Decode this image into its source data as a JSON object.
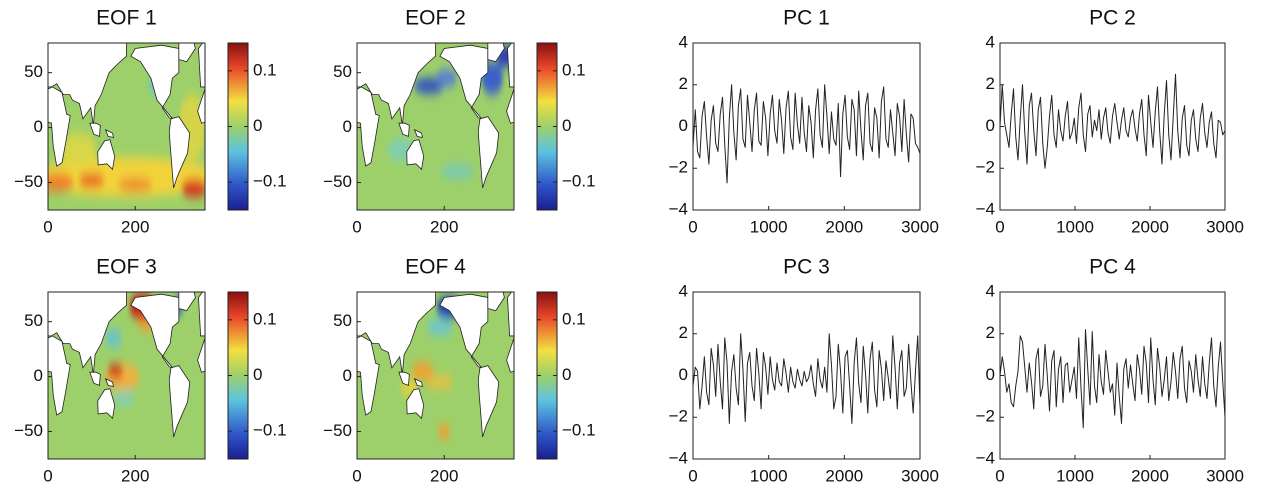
{
  "chart_data": [
    {
      "type": "map",
      "title": "EOF 1",
      "xlim": [
        0,
        360
      ],
      "ylim": [
        -75,
        77
      ],
      "xticks": [
        0,
        200
      ],
      "yticks": [
        50,
        0,
        {
          "value": -50,
          "label": "−50"
        }
      ],
      "colorbar": {
        "clim": [
          -0.15,
          0.15
        ],
        "ticks": [
          0.1,
          0,
          {
            "value": -0.1,
            "label": "−0.1"
          }
        ]
      }
    },
    {
      "type": "map",
      "title": "EOF 2",
      "xlim": [
        0,
        360
      ],
      "ylim": [
        -75,
        77
      ],
      "xticks": [
        0,
        200
      ],
      "yticks": [
        50,
        0,
        {
          "value": -50,
          "label": "−50"
        }
      ],
      "colorbar": {
        "clim": [
          -0.15,
          0.15
        ],
        "ticks": [
          0.1,
          0,
          {
            "value": -0.1,
            "label": "−0.1"
          }
        ]
      }
    },
    {
      "type": "line",
      "title": "PC 1",
      "color": "#222222",
      "xlim": [
        0,
        3000
      ],
      "ylim": [
        -4,
        4
      ],
      "xticks": [
        0,
        1000,
        2000,
        3000
      ],
      "yticks": [
        {
          "value": -4,
          "label": "−4"
        },
        {
          "value": -2,
          "label": "−2"
        },
        0,
        2,
        4
      ],
      "x": [
        0,
        30,
        60,
        90,
        120,
        150,
        180,
        210,
        240,
        270,
        300,
        330,
        360,
        390,
        420,
        450,
        480,
        510,
        540,
        570,
        600,
        630,
        660,
        690,
        720,
        750,
        780,
        810,
        840,
        870,
        900,
        930,
        960,
        990,
        1020,
        1050,
        1080,
        1110,
        1140,
        1170,
        1200,
        1230,
        1260,
        1290,
        1320,
        1350,
        1380,
        1410,
        1440,
        1470,
        1500,
        1530,
        1560,
        1590,
        1620,
        1650,
        1680,
        1710,
        1740,
        1770,
        1800,
        1830,
        1860,
        1890,
        1920,
        1950,
        1980,
        2010,
        2040,
        2070,
        2100,
        2130,
        2160,
        2190,
        2220,
        2250,
        2280,
        2310,
        2340,
        2370,
        2400,
        2430,
        2460,
        2490,
        2520,
        2550,
        2580,
        2610,
        2640,
        2670,
        2700,
        2730,
        2760,
        2790,
        2820,
        2850,
        2880,
        2910,
        2940,
        2970,
        3000
      ],
      "values": [
        -1.0,
        0.8,
        -1.2,
        -1.5,
        0.5,
        1.2,
        -0.5,
        -1.8,
        0.3,
        1.0,
        -0.8,
        -1.2,
        0.6,
        1.4,
        -0.9,
        -2.7,
        0.4,
        2.0,
        -0.3,
        -1.6,
        1.0,
        1.8,
        -0.6,
        -1.0,
        1.5,
        0.2,
        -1.2,
        0.8,
        1.6,
        -0.7,
        -0.9,
        1.2,
        0.4,
        -1.4,
        0.6,
        1.5,
        -0.2,
        -0.8,
        1.3,
        0.3,
        -1.3,
        0.9,
        1.7,
        -0.5,
        -1.1,
        1.6,
        0.1,
        -0.8,
        1.4,
        -0.3,
        -1.2,
        1.0,
        0.2,
        -1.5,
        0.8,
        1.8,
        -0.4,
        -1.0,
        2.0,
        0.5,
        -1.3,
        0.7,
        -0.6,
        -0.9,
        1.1,
        -2.4,
        0.6,
        1.5,
        -0.5,
        -1.1,
        1.3,
        0.8,
        -1.4,
        1.7,
        -0.2,
        -1.6,
        1.0,
        1.6,
        -0.8,
        -1.2,
        0.9,
        0.4,
        -1.5,
        1.2,
        1.9,
        -0.6,
        -1.0,
        0.8,
        -0.3,
        -1.4,
        1.1,
        0.5,
        -1.2,
        1.3,
        -0.4,
        -1.7,
        0.6,
        0.4,
        -0.8,
        -1.0,
        -1.3
      ]
    },
    {
      "type": "line",
      "title": "PC 2",
      "color": "#222222",
      "xlim": [
        0,
        3000
      ],
      "ylim": [
        -4,
        4
      ],
      "xticks": [
        0,
        1000,
        2000,
        3000
      ],
      "yticks": [
        {
          "value": -4,
          "label": "−4"
        },
        {
          "value": -2,
          "label": "−2"
        },
        0,
        2,
        4
      ],
      "x": [
        0,
        30,
        60,
        90,
        120,
        150,
        180,
        210,
        240,
        270,
        300,
        330,
        360,
        390,
        420,
        450,
        480,
        510,
        540,
        570,
        600,
        630,
        660,
        690,
        720,
        750,
        780,
        810,
        840,
        870,
        900,
        930,
        960,
        990,
        1020,
        1050,
        1080,
        1110,
        1140,
        1170,
        1200,
        1230,
        1260,
        1290,
        1320,
        1350,
        1380,
        1410,
        1440,
        1470,
        1500,
        1530,
        1560,
        1590,
        1620,
        1650,
        1680,
        1710,
        1740,
        1770,
        1800,
        1830,
        1860,
        1890,
        1920,
        1950,
        1980,
        2010,
        2040,
        2070,
        2100,
        2130,
        2160,
        2190,
        2220,
        2250,
        2280,
        2310,
        2340,
        2370,
        2400,
        2430,
        2460,
        2490,
        2520,
        2550,
        2580,
        2610,
        2640,
        2670,
        2700,
        2730,
        2760,
        2790,
        2820,
        2850,
        2880,
        2910,
        2940,
        2970,
        3000
      ],
      "values": [
        0.0,
        2.0,
        0.2,
        -0.4,
        -1.0,
        0.6,
        1.8,
        -0.5,
        -1.6,
        0.4,
        2.0,
        -0.3,
        -1.8,
        1.0,
        1.6,
        -0.2,
        -1.4,
        0.8,
        1.4,
        -0.8,
        -2.0,
        -1.0,
        0.5,
        1.5,
        -0.4,
        -1.0,
        0.8,
        -0.2,
        -0.7,
        0.5,
        1.2,
        -0.6,
        -0.3,
        0.4,
        -0.8,
        0.9,
        1.6,
        -0.4,
        -1.2,
        0.6,
        1.0,
        -0.5,
        0.3,
        -0.2,
        0.8,
        -0.6,
        0.4,
        0.9,
        -0.3,
        -0.8,
        0.5,
        1.1,
        0.2,
        -0.6,
        0.3,
        0.9,
        -0.2,
        -0.5,
        0.4,
        0.8,
        -0.1,
        -0.7,
        0.6,
        1.3,
        -0.4,
        -1.4,
        1.5,
        0.2,
        -1.0,
        0.7,
        1.9,
        -0.3,
        -1.8,
        0.6,
        2.2,
        -0.4,
        -1.6,
        0.5,
        2.5,
        -0.2,
        -1.5,
        0.4,
        1.0,
        -0.9,
        -1.4,
        0.3,
        0.8,
        -0.6,
        -1.2,
        0.4,
        1.1,
        -0.3,
        -1.0,
        0.2,
        0.7,
        -0.8,
        -1.5,
        0.3,
        0.2,
        -0.4,
        -0.2
      ]
    },
    {
      "type": "map",
      "title": "EOF 3",
      "xlim": [
        0,
        360
      ],
      "ylim": [
        -75,
        77
      ],
      "xticks": [
        0,
        200
      ],
      "yticks": [
        50,
        0,
        {
          "value": -50,
          "label": "−50"
        }
      ],
      "colorbar": {
        "clim": [
          -0.15,
          0.15
        ],
        "ticks": [
          0.1,
          0,
          {
            "value": -0.1,
            "label": "−0.1"
          }
        ]
      }
    },
    {
      "type": "map",
      "title": "EOF 4",
      "xlim": [
        0,
        360
      ],
      "ylim": [
        -75,
        77
      ],
      "xticks": [
        0,
        200
      ],
      "yticks": [
        50,
        0,
        {
          "value": -50,
          "label": "−50"
        }
      ],
      "colorbar": {
        "clim": [
          -0.15,
          0.15
        ],
        "ticks": [
          0.1,
          0,
          {
            "value": -0.1,
            "label": "−0.1"
          }
        ]
      }
    },
    {
      "type": "line",
      "title": "PC 3",
      "color": "#222222",
      "xlim": [
        0,
        3000
      ],
      "ylim": [
        -4,
        4
      ],
      "xticks": [
        0,
        1000,
        2000,
        3000
      ],
      "yticks": [
        {
          "value": -4,
          "label": "−4"
        },
        {
          "value": -2,
          "label": "−2"
        },
        0,
        2,
        4
      ],
      "x": [
        0,
        30,
        60,
        90,
        120,
        150,
        180,
        210,
        240,
        270,
        300,
        330,
        360,
        390,
        420,
        450,
        480,
        510,
        540,
        570,
        600,
        630,
        660,
        690,
        720,
        750,
        780,
        810,
        840,
        870,
        900,
        930,
        960,
        990,
        1020,
        1050,
        1080,
        1110,
        1140,
        1170,
        1200,
        1230,
        1260,
        1290,
        1320,
        1350,
        1380,
        1410,
        1440,
        1470,
        1500,
        1530,
        1560,
        1590,
        1620,
        1650,
        1680,
        1710,
        1740,
        1770,
        1800,
        1830,
        1860,
        1890,
        1920,
        1950,
        1980,
        2010,
        2040,
        2070,
        2100,
        2130,
        2160,
        2190,
        2220,
        2250,
        2280,
        2310,
        2340,
        2370,
        2400,
        2430,
        2460,
        2490,
        2520,
        2550,
        2580,
        2610,
        2640,
        2670,
        2700,
        2730,
        2760,
        2790,
        2820,
        2850,
        2880,
        2910,
        2940,
        2970,
        3000
      ],
      "values": [
        -0.5,
        0.4,
        0.2,
        -1.6,
        -0.5,
        0.9,
        -0.8,
        -1.4,
        1.3,
        0.5,
        -1.0,
        1.5,
        -0.3,
        -1.6,
        1.8,
        0.6,
        -2.3,
        0.2,
        1.0,
        -0.6,
        -1.4,
        2.0,
        0.3,
        -2.2,
        0.6,
        1.1,
        -0.5,
        -1.2,
        1.3,
        0.1,
        -1.6,
        1.1,
        0.4,
        -0.9,
        0.9,
        -0.2,
        -0.7,
        0.6,
        -0.3,
        -0.5,
        0.8,
        0.1,
        -0.8,
        0.4,
        -0.3,
        -0.6,
        0.3,
        -0.2,
        -0.5,
        0.2,
        -0.3,
        -0.1,
        0.5,
        -0.4,
        -1.0,
        0.8,
        -0.2,
        -0.6,
        0.4,
        -0.8,
        2.0,
        0.5,
        -1.6,
        -1.0,
        1.5,
        0.2,
        -1.8,
        0.9,
        1.2,
        -0.5,
        -2.3,
        0.6,
        1.8,
        -0.4,
        -1.3,
        1.4,
        0.1,
        -1.8,
        0.8,
        1.6,
        -0.7,
        -1.5,
        1.2,
        0.3,
        -1.2,
        0.7,
        -0.1,
        -1.1,
        1.9,
        0.4,
        -1.6,
        0.6,
        1.2,
        -1.0,
        -0.6,
        1.5,
        -0.3,
        -1.8,
        0.2,
        1.9,
        -1.5
      ]
    },
    {
      "type": "line",
      "title": "PC 4",
      "color": "#222222",
      "xlim": [
        0,
        3000
      ],
      "ylim": [
        -4,
        4
      ],
      "xticks": [
        0,
        1000,
        2000,
        3000
      ],
      "yticks": [
        {
          "value": -4,
          "label": "−4"
        },
        {
          "value": -2,
          "label": "−2"
        },
        0,
        2,
        4
      ],
      "x": [
        0,
        30,
        60,
        90,
        120,
        150,
        180,
        210,
        240,
        270,
        300,
        330,
        360,
        390,
        420,
        450,
        480,
        510,
        540,
        570,
        600,
        630,
        660,
        690,
        720,
        750,
        780,
        810,
        840,
        870,
        900,
        930,
        960,
        990,
        1020,
        1050,
        1080,
        1110,
        1140,
        1170,
        1200,
        1230,
        1260,
        1290,
        1320,
        1350,
        1380,
        1410,
        1440,
        1470,
        1500,
        1530,
        1560,
        1590,
        1620,
        1650,
        1680,
        1710,
        1740,
        1770,
        1800,
        1830,
        1860,
        1890,
        1920,
        1950,
        1980,
        2010,
        2040,
        2070,
        2100,
        2130,
        2160,
        2190,
        2220,
        2250,
        2280,
        2310,
        2340,
        2370,
        2400,
        2430,
        2460,
        2490,
        2520,
        2550,
        2580,
        2610,
        2640,
        2670,
        2700,
        2730,
        2760,
        2790,
        2820,
        2850,
        2880,
        2910,
        2940,
        2970,
        3000
      ],
      "values": [
        0.0,
        0.9,
        0.2,
        -0.8,
        -0.4,
        -1.3,
        -1.5,
        -0.5,
        0.2,
        1.9,
        1.6,
        0.4,
        -0.8,
        0.6,
        -0.3,
        -1.6,
        0.8,
        1.3,
        -1.0,
        -0.5,
        1.5,
        0.0,
        -1.7,
        0.7,
        1.2,
        -1.5,
        0.3,
        0.9,
        -1.3,
        0.5,
        0.6,
        -0.8,
        -0.2,
        0.4,
        -1.1,
        1.8,
        -0.6,
        -2.5,
        2.2,
        0.3,
        -1.4,
        2.1,
        -0.5,
        -1.3,
        1.0,
        -0.3,
        -0.9,
        1.2,
        0.2,
        -0.8,
        -0.4,
        -1.9,
        0.6,
        -1.0,
        -2.3,
        0.3,
        0.8,
        -0.6,
        0.5,
        -0.4,
        -1.2,
        1.0,
        0.3,
        -0.9,
        1.4,
        0.6,
        -1.3,
        1.8,
        -0.2,
        -1.4,
        1.3,
        0.4,
        -1.0,
        -0.2,
        0.9,
        -1.2,
        -0.3,
        1.1,
        0.2,
        -1.1,
        0.8,
        1.4,
        -0.6,
        -1.3,
        0.7,
        0.2,
        -0.8,
        1.0,
        -0.2,
        -1.0,
        0.9,
        -0.4,
        -1.1,
        0.6,
        1.8,
        -0.5,
        -1.5,
        0.4,
        1.6,
        -0.3,
        -2.0
      ]
    }
  ]
}
